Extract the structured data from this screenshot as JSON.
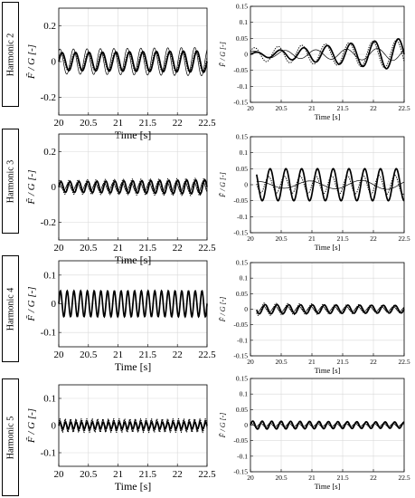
{
  "figure": {
    "row_labels": [
      "Harmonic 2",
      "Harmonic 3",
      "Harmonic 4",
      "Harmonic 5"
    ],
    "ylabel": "F̃ / G [-]",
    "left_xlabel": "Time [s]",
    "right_xlabel": "Time [s]"
  },
  "chart_data": [
    {
      "type": "line",
      "row": 0,
      "col": 0,
      "xlim": [
        20,
        22.5
      ],
      "ylim": [
        -0.3,
        0.3
      ],
      "xticks": [
        "20",
        "20.5",
        "21",
        "21.5",
        "22",
        "22.5"
      ],
      "yticks": [
        "0.2",
        "0",
        "-0.2"
      ],
      "grid": true,
      "x_start": 20,
      "x_end": 22.5,
      "series": [
        {
          "style": "solid-thick",
          "freq_hz": 4.4,
          "amplitude": [
            0.05,
            0.06
          ],
          "phase": 0.0
        },
        {
          "style": "solid-thin",
          "freq_hz": 4.4,
          "amplitude": [
            0.07,
            0.08
          ],
          "phase": 1.0
        },
        {
          "style": "dotted",
          "freq_hz": 4.4,
          "amplitude": [
            0.05,
            0.06
          ],
          "phase": 0.4
        }
      ]
    },
    {
      "type": "line",
      "row": 0,
      "col": 1,
      "xlim": [
        20,
        22.5
      ],
      "ylim": [
        -0.15,
        0.15
      ],
      "xticks": [
        "20",
        "20.5",
        "21",
        "21.5",
        "22",
        "22.5"
      ],
      "yticks": [
        "0.15",
        "0.1",
        "0.05",
        "0",
        "-0.05",
        "-0.1",
        "-0.15"
      ],
      "grid": true,
      "x_start": 20,
      "x_end": 22.5,
      "series": [
        {
          "style": "solid-thick",
          "freq_hz": 2.6,
          "amplitude": [
            0.005,
            0.05
          ],
          "phase": 0.0
        },
        {
          "style": "solid-thin",
          "freq_hz": 2.0,
          "amplitude": [
            0.01,
            0.02
          ],
          "phase": 0.8
        },
        {
          "style": "dotted",
          "freq_hz": 2.6,
          "amplitude": [
            0.02,
            0.045
          ],
          "phase": 0.5
        }
      ]
    },
    {
      "type": "line",
      "row": 1,
      "col": 0,
      "xlim": [
        20,
        22.5
      ],
      "ylim": [
        -0.3,
        0.3
      ],
      "xticks": [
        "20",
        "20.5",
        "21",
        "21.5",
        "22",
        "22.5"
      ],
      "yticks": [
        "0.2",
        "0",
        "-0.2"
      ],
      "grid": true,
      "x_start": 20,
      "x_end": 22.5,
      "series": [
        {
          "style": "solid-thick",
          "freq_hz": 6.6,
          "amplitude": [
            0.03,
            0.04
          ],
          "phase": 0.0
        },
        {
          "style": "solid-thin",
          "freq_hz": 6.6,
          "amplitude": [
            0.02,
            0.03
          ],
          "phase": 1.2
        },
        {
          "style": "dotted",
          "freq_hz": 6.6,
          "amplitude": [
            0.04,
            0.05
          ],
          "phase": 0.5
        }
      ]
    },
    {
      "type": "line",
      "row": 1,
      "col": 1,
      "xlim": [
        20,
        22.5
      ],
      "ylim": [
        -0.15,
        0.15
      ],
      "xticks": [
        "20",
        "20.5",
        "21",
        "21.5",
        "22",
        "22.5"
      ],
      "yticks": [
        "0.15",
        "0.1",
        "0.05",
        "0",
        "-0.05",
        "-0.1",
        "-0.15"
      ],
      "grid": true,
      "x_start": 20.1,
      "x_end": 22.5,
      "series": [
        {
          "style": "solid-thick",
          "freq_hz": 3.9,
          "amplitude": [
            0.05,
            0.05
          ],
          "phase": 0.0
        },
        {
          "style": "solid-thin",
          "freq_hz": 1.2,
          "amplitude": [
            0.01,
            0.015
          ],
          "phase": 0.6
        },
        {
          "style": "dotted",
          "freq_hz": 3.9,
          "amplitude": [
            0.025,
            0.03
          ],
          "phase": 0.6
        }
      ]
    },
    {
      "type": "line",
      "row": 2,
      "col": 0,
      "xlim": [
        20,
        22.5
      ],
      "ylim": [
        -0.15,
        0.15
      ],
      "xticks": [
        "20",
        "20.5",
        "21",
        "21.5",
        "22",
        "22.5"
      ],
      "yticks": [
        "0.1",
        "0",
        "-0.1"
      ],
      "grid": true,
      "x_start": 20,
      "x_end": 22.5,
      "series": [
        {
          "style": "solid-thick",
          "freq_hz": 8.8,
          "amplitude": [
            0.045,
            0.045
          ],
          "phase": 0.0
        },
        {
          "style": "solid-thin",
          "freq_hz": 8.8,
          "amplitude": [
            0.043,
            0.043
          ],
          "phase": 0.1
        },
        {
          "style": "dotted",
          "freq_hz": 8.8,
          "amplitude": [
            0.045,
            0.045
          ],
          "phase": 0.05
        }
      ]
    },
    {
      "type": "line",
      "row": 2,
      "col": 1,
      "xlim": [
        20,
        22.5
      ],
      "ylim": [
        -0.15,
        0.15
      ],
      "xticks": [
        "20",
        "20.5",
        "21",
        "21.5",
        "22",
        "22.5"
      ],
      "yticks": [
        "0.15",
        "0.1",
        "0.05",
        "0",
        "-0.05",
        "-0.1",
        "-0.15"
      ],
      "grid": true,
      "x_start": 20.1,
      "x_end": 22.5,
      "series": [
        {
          "style": "solid-thick",
          "freq_hz": 5.2,
          "amplitude": [
            0.015,
            0.012
          ],
          "phase": 0.0
        },
        {
          "style": "solid-thin",
          "freq_hz": 5.2,
          "amplitude": [
            0.01,
            0.008
          ],
          "phase": 1.0
        },
        {
          "style": "dotted",
          "freq_hz": 5.2,
          "amplitude": [
            0.02,
            0.012
          ],
          "phase": 0.5
        }
      ]
    },
    {
      "type": "line",
      "row": 3,
      "col": 0,
      "xlim": [
        20,
        22.5
      ],
      "ylim": [
        -0.15,
        0.15
      ],
      "xticks": [
        "20",
        "20.5",
        "21",
        "21.5",
        "22",
        "22.5"
      ],
      "yticks": [
        "0.1",
        "0",
        "-0.1"
      ],
      "grid": true,
      "x_start": 20,
      "x_end": 22.5,
      "series": [
        {
          "style": "solid-thick",
          "freq_hz": 11.0,
          "amplitude": [
            0.012,
            0.012
          ],
          "phase": 0.0
        },
        {
          "style": "solid-thin",
          "freq_hz": 11.0,
          "amplitude": [
            0.02,
            0.02
          ],
          "phase": 0.6
        },
        {
          "style": "dotted",
          "freq_hz": 11.0,
          "amplitude": [
            0.025,
            0.025
          ],
          "phase": 0.3
        }
      ]
    },
    {
      "type": "line",
      "row": 3,
      "col": 1,
      "xlim": [
        20,
        22.5
      ],
      "ylim": [
        -0.15,
        0.15
      ],
      "xticks": [
        "20",
        "20.5",
        "21",
        "21.5",
        "22",
        "22.5"
      ],
      "yticks": [
        "0.15",
        "0.1",
        "0.05",
        "0",
        "-0.05",
        "-0.1",
        "-0.15"
      ],
      "grid": true,
      "x_start": 20,
      "x_end": 22.5,
      "series": [
        {
          "style": "solid-thick",
          "freq_hz": 6.5,
          "amplitude": [
            0.013,
            0.01
          ],
          "phase": 0.0
        },
        {
          "style": "solid-thin",
          "freq_hz": 6.5,
          "amplitude": [
            0.006,
            0.005
          ],
          "phase": 1.0
        },
        {
          "style": "dotted",
          "freq_hz": 6.5,
          "amplitude": [
            0.012,
            0.008
          ],
          "phase": 0.5
        }
      ]
    }
  ]
}
